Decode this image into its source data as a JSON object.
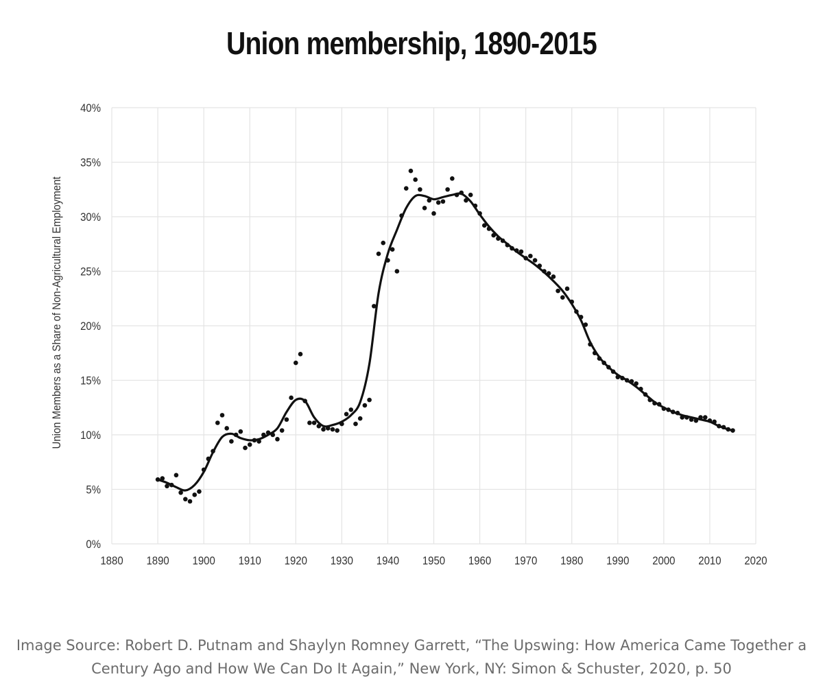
{
  "title": "Union membership, 1890-2015",
  "caption": {
    "line1": "Image Source: Robert D. Putnam and Shaylyn Romney Garrett, “The Upswing: How America Came Together a",
    "line2": "Century Ago and How We Can Do It Again,” New York, NY: Simon & Schuster, 2020, p. 50"
  },
  "chart_data": {
    "type": "scatter",
    "title": "Union membership, 1890-2015",
    "ylabel": "Union Members as a Share of Non-Agricultural Employment",
    "xlabel": "",
    "xlim": [
      1880,
      2020
    ],
    "ylim": [
      0,
      40
    ],
    "x_ticks": [
      1880,
      1890,
      1900,
      1910,
      1920,
      1930,
      1940,
      1950,
      1960,
      1970,
      1980,
      1990,
      2000,
      2010,
      2020
    ],
    "y_ticks": [
      0,
      5,
      10,
      15,
      20,
      25,
      30,
      35,
      40
    ],
    "y_tick_labels": [
      "0%",
      "5%",
      "10%",
      "15%",
      "20%",
      "25%",
      "30%",
      "35%",
      "40%"
    ],
    "grid": true,
    "series": [
      {
        "kind": "points",
        "points": [
          [
            1890,
            5.9
          ],
          [
            1891,
            6.0
          ],
          [
            1892,
            5.3
          ],
          [
            1893,
            5.4
          ],
          [
            1894,
            6.3
          ],
          [
            1895,
            4.7
          ],
          [
            1896,
            4.1
          ],
          [
            1897,
            3.9
          ],
          [
            1898,
            4.5
          ],
          [
            1899,
            4.8
          ],
          [
            1900,
            6.8
          ],
          [
            1901,
            7.8
          ],
          [
            1902,
            8.5
          ],
          [
            1903,
            11.1
          ],
          [
            1904,
            11.8
          ],
          [
            1905,
            10.6
          ],
          [
            1906,
            9.4
          ],
          [
            1907,
            10.0
          ],
          [
            1908,
            10.3
          ],
          [
            1909,
            8.8
          ],
          [
            1910,
            9.1
          ],
          [
            1911,
            9.5
          ],
          [
            1912,
            9.4
          ],
          [
            1913,
            10.0
          ],
          [
            1914,
            10.2
          ],
          [
            1915,
            10.0
          ],
          [
            1916,
            9.6
          ],
          [
            1917,
            10.4
          ],
          [
            1918,
            11.4
          ],
          [
            1919,
            13.4
          ],
          [
            1920,
            16.6
          ],
          [
            1921,
            17.4
          ],
          [
            1922,
            13.1
          ],
          [
            1923,
            11.1
          ],
          [
            1924,
            11.1
          ],
          [
            1925,
            10.8
          ],
          [
            1926,
            10.5
          ],
          [
            1927,
            10.6
          ],
          [
            1928,
            10.5
          ],
          [
            1929,
            10.4
          ],
          [
            1930,
            11.0
          ],
          [
            1931,
            11.9
          ],
          [
            1932,
            12.3
          ],
          [
            1933,
            11.0
          ],
          [
            1934,
            11.5
          ],
          [
            1935,
            12.7
          ],
          [
            1936,
            13.2
          ],
          [
            1937,
            21.8
          ],
          [
            1938,
            26.6
          ],
          [
            1939,
            27.6
          ],
          [
            1940,
            26.0
          ],
          [
            1941,
            27.0
          ],
          [
            1942,
            25.0
          ],
          [
            1943,
            30.1
          ],
          [
            1944,
            32.6
          ],
          [
            1945,
            34.2
          ],
          [
            1946,
            33.4
          ],
          [
            1947,
            32.5
          ],
          [
            1948,
            30.8
          ],
          [
            1949,
            31.5
          ],
          [
            1950,
            30.3
          ],
          [
            1951,
            31.3
          ],
          [
            1952,
            31.4
          ],
          [
            1953,
            32.5
          ],
          [
            1954,
            33.5
          ],
          [
            1955,
            32.0
          ],
          [
            1956,
            32.2
          ],
          [
            1957,
            31.5
          ],
          [
            1958,
            32.0
          ],
          [
            1959,
            31.0
          ],
          [
            1960,
            30.3
          ],
          [
            1961,
            29.2
          ],
          [
            1962,
            28.9
          ],
          [
            1963,
            28.3
          ],
          [
            1964,
            28.0
          ],
          [
            1965,
            27.8
          ],
          [
            1966,
            27.4
          ],
          [
            1967,
            27.1
          ],
          [
            1968,
            26.9
          ],
          [
            1969,
            26.8
          ],
          [
            1970,
            26.2
          ],
          [
            1971,
            26.4
          ],
          [
            1972,
            26.0
          ],
          [
            1973,
            25.5
          ],
          [
            1974,
            25.0
          ],
          [
            1975,
            24.8
          ],
          [
            1976,
            24.5
          ],
          [
            1977,
            23.2
          ],
          [
            1978,
            22.6
          ],
          [
            1979,
            23.4
          ],
          [
            1980,
            22.2
          ],
          [
            1981,
            21.3
          ],
          [
            1982,
            20.8
          ],
          [
            1983,
            20.1
          ],
          [
            1984,
            18.3
          ],
          [
            1985,
            17.5
          ],
          [
            1986,
            17.0
          ],
          [
            1987,
            16.6
          ],
          [
            1988,
            16.2
          ],
          [
            1989,
            15.8
          ],
          [
            1990,
            15.3
          ],
          [
            1991,
            15.2
          ],
          [
            1992,
            15.0
          ],
          [
            1993,
            14.9
          ],
          [
            1994,
            14.7
          ],
          [
            1995,
            14.2
          ],
          [
            1996,
            13.7
          ],
          [
            1997,
            13.2
          ],
          [
            1998,
            12.9
          ],
          [
            1999,
            12.8
          ],
          [
            2000,
            12.4
          ],
          [
            2001,
            12.3
          ],
          [
            2002,
            12.1
          ],
          [
            2003,
            12.0
          ],
          [
            2004,
            11.6
          ],
          [
            2005,
            11.6
          ],
          [
            2006,
            11.4
          ],
          [
            2007,
            11.3
          ],
          [
            2008,
            11.6
          ],
          [
            2009,
            11.6
          ],
          [
            2010,
            11.3
          ],
          [
            2011,
            11.2
          ],
          [
            2012,
            10.8
          ],
          [
            2013,
            10.7
          ],
          [
            2014,
            10.5
          ],
          [
            2015,
            10.4
          ]
        ]
      },
      {
        "kind": "smoothed-line",
        "points": [
          [
            1890,
            5.9
          ],
          [
            1892,
            5.6
          ],
          [
            1894,
            5.2
          ],
          [
            1896,
            4.9
          ],
          [
            1898,
            5.4
          ],
          [
            1900,
            6.6
          ],
          [
            1902,
            8.4
          ],
          [
            1904,
            9.8
          ],
          [
            1906,
            10.1
          ],
          [
            1908,
            9.7
          ],
          [
            1910,
            9.5
          ],
          [
            1912,
            9.6
          ],
          [
            1914,
            10.0
          ],
          [
            1916,
            10.6
          ],
          [
            1918,
            12.1
          ],
          [
            1920,
            13.2
          ],
          [
            1922,
            13.1
          ],
          [
            1924,
            11.6
          ],
          [
            1926,
            10.8
          ],
          [
            1928,
            10.9
          ],
          [
            1930,
            11.2
          ],
          [
            1932,
            11.8
          ],
          [
            1934,
            13.0
          ],
          [
            1936,
            16.5
          ],
          [
            1938,
            23.0
          ],
          [
            1940,
            26.6
          ],
          [
            1942,
            28.8
          ],
          [
            1944,
            30.8
          ],
          [
            1946,
            31.9
          ],
          [
            1948,
            31.9
          ],
          [
            1950,
            31.6
          ],
          [
            1952,
            31.8
          ],
          [
            1954,
            32.0
          ],
          [
            1956,
            32.1
          ],
          [
            1958,
            31.4
          ],
          [
            1960,
            30.2
          ],
          [
            1962,
            29.1
          ],
          [
            1964,
            28.2
          ],
          [
            1966,
            27.5
          ],
          [
            1968,
            26.8
          ],
          [
            1970,
            26.2
          ],
          [
            1972,
            25.6
          ],
          [
            1974,
            24.9
          ],
          [
            1976,
            24.1
          ],
          [
            1978,
            23.2
          ],
          [
            1980,
            22.0
          ],
          [
            1982,
            20.5
          ],
          [
            1984,
            18.5
          ],
          [
            1986,
            17.1
          ],
          [
            1988,
            16.2
          ],
          [
            1990,
            15.5
          ],
          [
            1992,
            15.0
          ],
          [
            1994,
            14.4
          ],
          [
            1996,
            13.7
          ],
          [
            1998,
            13.0
          ],
          [
            2000,
            12.5
          ],
          [
            2002,
            12.1
          ],
          [
            2004,
            11.8
          ],
          [
            2006,
            11.6
          ],
          [
            2008,
            11.4
          ],
          [
            2010,
            11.2
          ],
          [
            2012,
            10.8
          ],
          [
            2014,
            10.5
          ],
          [
            2015,
            10.4
          ]
        ]
      }
    ]
  }
}
